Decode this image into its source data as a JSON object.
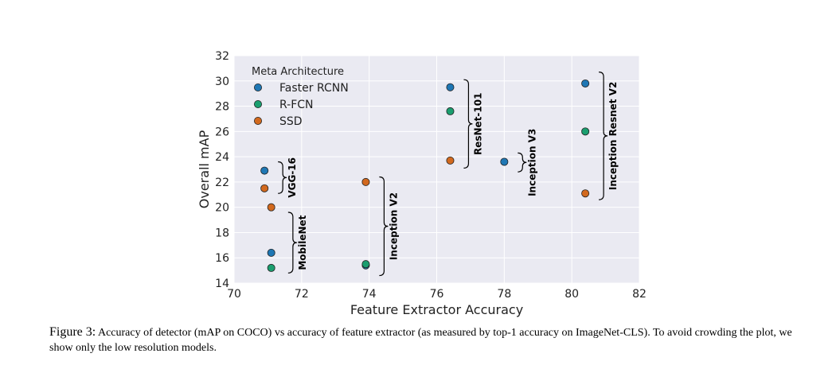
{
  "chart_data": {
    "type": "scatter",
    "title": "",
    "xlabel": "Feature Extractor Accuracy",
    "ylabel": "Overall mAP",
    "xlim": [
      70,
      82
    ],
    "ylim": [
      14,
      32
    ],
    "xticks": [
      70,
      72,
      74,
      76,
      78,
      80,
      82
    ],
    "yticks": [
      14,
      16,
      18,
      20,
      22,
      24,
      26,
      28,
      30,
      32
    ],
    "grid": true,
    "legend": {
      "title": "Meta Architecture",
      "position": "top-left"
    },
    "series": [
      {
        "name": "Faster RCNN",
        "color": "#1f77b4",
        "points": [
          {
            "x": 70.9,
            "y": 22.9
          },
          {
            "x": 71.1,
            "y": 16.4
          },
          {
            "x": 73.9,
            "y": 15.4
          },
          {
            "x": 76.4,
            "y": 29.5
          },
          {
            "x": 78.0,
            "y": 23.6
          },
          {
            "x": 80.4,
            "y": 29.8
          }
        ]
      },
      {
        "name": "R-FCN",
        "color": "#1a9e6f",
        "points": [
          {
            "x": 71.1,
            "y": 15.2
          },
          {
            "x": 73.9,
            "y": 15.5
          },
          {
            "x": 76.4,
            "y": 27.6
          },
          {
            "x": 80.4,
            "y": 26.0
          }
        ]
      },
      {
        "name": "SSD",
        "color": "#d2691e",
        "points": [
          {
            "x": 70.9,
            "y": 21.5
          },
          {
            "x": 71.1,
            "y": 20.0
          },
          {
            "x": 73.9,
            "y": 22.0
          },
          {
            "x": 76.4,
            "y": 23.7
          },
          {
            "x": 80.4,
            "y": 21.1
          }
        ]
      }
    ],
    "annotations": [
      {
        "text": "VGG-16",
        "x": 71.3,
        "y_range": [
          21.1,
          23.6
        ]
      },
      {
        "text": "MobileNet",
        "x": 71.6,
        "y_range": [
          14.8,
          19.6
        ]
      },
      {
        "text": "Inception V2",
        "x": 74.3,
        "y_range": [
          14.6,
          22.4
        ]
      },
      {
        "text": "ResNet-101",
        "x": 76.8,
        "y_range": [
          23.1,
          30.1
        ]
      },
      {
        "text": "Inception V3",
        "x": 78.4,
        "y_range": [
          22.8,
          24.3
        ]
      },
      {
        "text": "Inception Resnet V2",
        "x": 80.8,
        "y_range": [
          20.6,
          30.7
        ]
      }
    ]
  },
  "caption": {
    "label": "Figure 3:",
    "text": "Accuracy of detector (mAP on COCO) vs accuracy of feature extractor (as measured by top-1 accuracy on ImageNet-CLS). To avoid crowding the plot, we show only the low resolution models."
  }
}
